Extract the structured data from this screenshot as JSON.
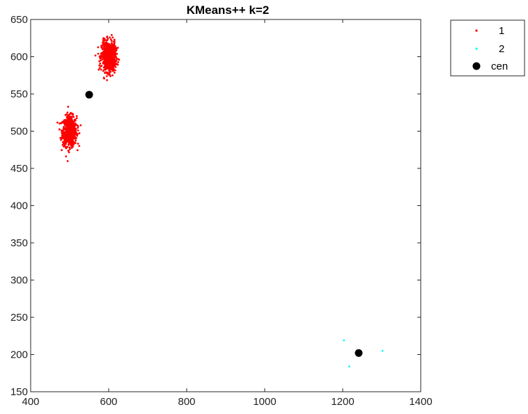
{
  "chart_data": {
    "type": "scatter",
    "title": "KMeans++ k=2",
    "xlabel": "",
    "ylabel": "",
    "xlim": [
      400,
      1400
    ],
    "ylim": [
      150,
      650
    ],
    "xticks": [
      400,
      600,
      800,
      1000,
      1200,
      1400
    ],
    "yticks": [
      150,
      200,
      250,
      300,
      350,
      400,
      450,
      500,
      550,
      600,
      650
    ],
    "grid": false,
    "legend_position": "outside-top-right",
    "series": [
      {
        "name": "1",
        "color": "#ff0000",
        "marker": "dot",
        "clusters": [
          {
            "center": [
              500,
              500
            ],
            "spread": [
              9,
              10
            ],
            "count": 750
          },
          {
            "center": [
              600,
              600
            ],
            "spread": [
              9,
              10
            ],
            "count": 750
          }
        ]
      },
      {
        "name": "2",
        "color": "#00ffff",
        "marker": "dot",
        "points": [
          [
            1203,
            219
          ],
          [
            1217,
            184
          ],
          [
            1302,
            205
          ]
        ]
      },
      {
        "name": "cen",
        "color": "#000000",
        "marker": "big-dot",
        "points": [
          [
            550,
            549
          ],
          [
            1241,
            202
          ]
        ]
      }
    ]
  }
}
